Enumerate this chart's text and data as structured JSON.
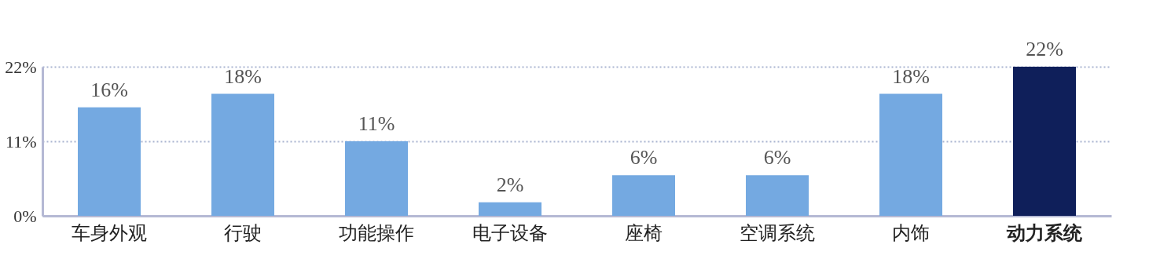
{
  "chart_data": {
    "type": "bar",
    "categories": [
      "车身外观",
      "行驶",
      "功能操作",
      "电子设备",
      "座椅",
      "空调系统",
      "内饰",
      "动力系统"
    ],
    "values": [
      16,
      18,
      11,
      2,
      6,
      6,
      18,
      22
    ],
    "value_labels": [
      "16%",
      "18%",
      "11%",
      "2%",
      "6%",
      "6%",
      "18%",
      "22%"
    ],
    "colors": [
      "#74a9e1",
      "#74a9e1",
      "#74a9e1",
      "#74a9e1",
      "#74a9e1",
      "#74a9e1",
      "#74a9e1",
      "#0f1f5a"
    ],
    "ylim": [
      0,
      22
    ],
    "yticks": [
      {
        "value": 0,
        "label": "0%"
      },
      {
        "value": 11,
        "label": "11%"
      },
      {
        "value": 22,
        "label": "22%"
      }
    ],
    "grid": "y"
  }
}
